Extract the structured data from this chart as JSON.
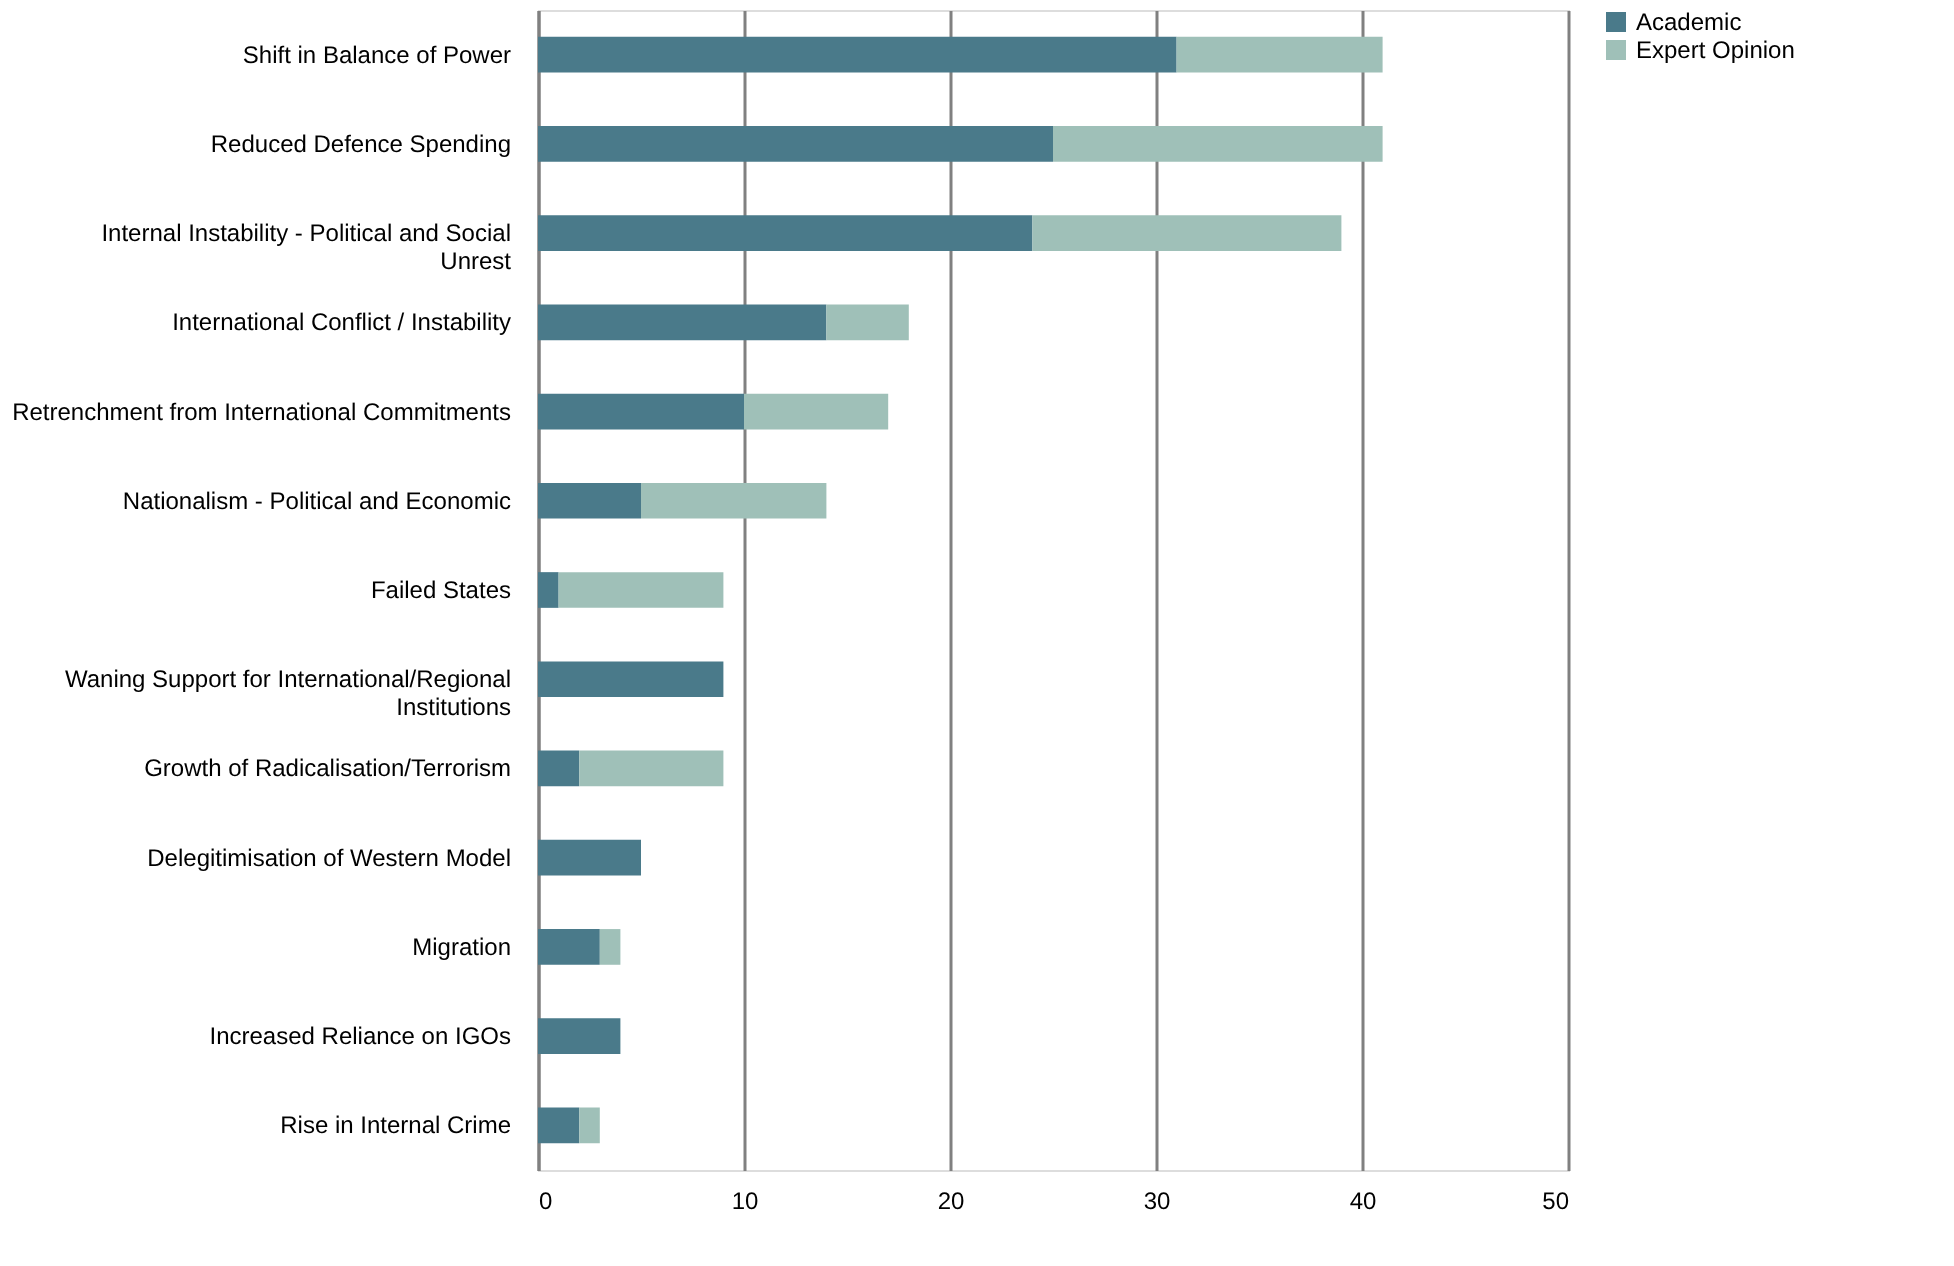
{
  "chart_data": {
    "type": "bar",
    "orientation": "horizontal",
    "stacked": true,
    "categories": [
      "Shift in Balance of Power",
      "Reduced Defence Spending",
      "Internal Instability - Political and Social Unrest",
      "International Conflict / Instability",
      "Retrenchment from International Commitments",
      "Nationalism  - Political and Economic",
      "Failed States",
      "Waning Support for International/Regional Institutions",
      "Growth of Radicalisation/Terrorism",
      "Delegitimisation of Western Model",
      "Migration",
      "Increased Reliance on IGOs",
      "Rise in Internal Crime"
    ],
    "series": [
      {
        "name": "Academic",
        "color": "#4a7a8a",
        "values": [
          31,
          25,
          24,
          14,
          10,
          5,
          1,
          9,
          2,
          5,
          3,
          4,
          2
        ]
      },
      {
        "name": "Expert Opinion",
        "color": "#9fc0b8",
        "values": [
          10,
          16,
          15,
          4,
          7,
          9,
          8,
          0,
          7,
          0,
          1,
          0,
          1
        ]
      }
    ],
    "xlim": [
      0,
      50
    ],
    "xticks": [
      0,
      10,
      20,
      30,
      40,
      50
    ],
    "grid": "x",
    "legend": "right"
  }
}
